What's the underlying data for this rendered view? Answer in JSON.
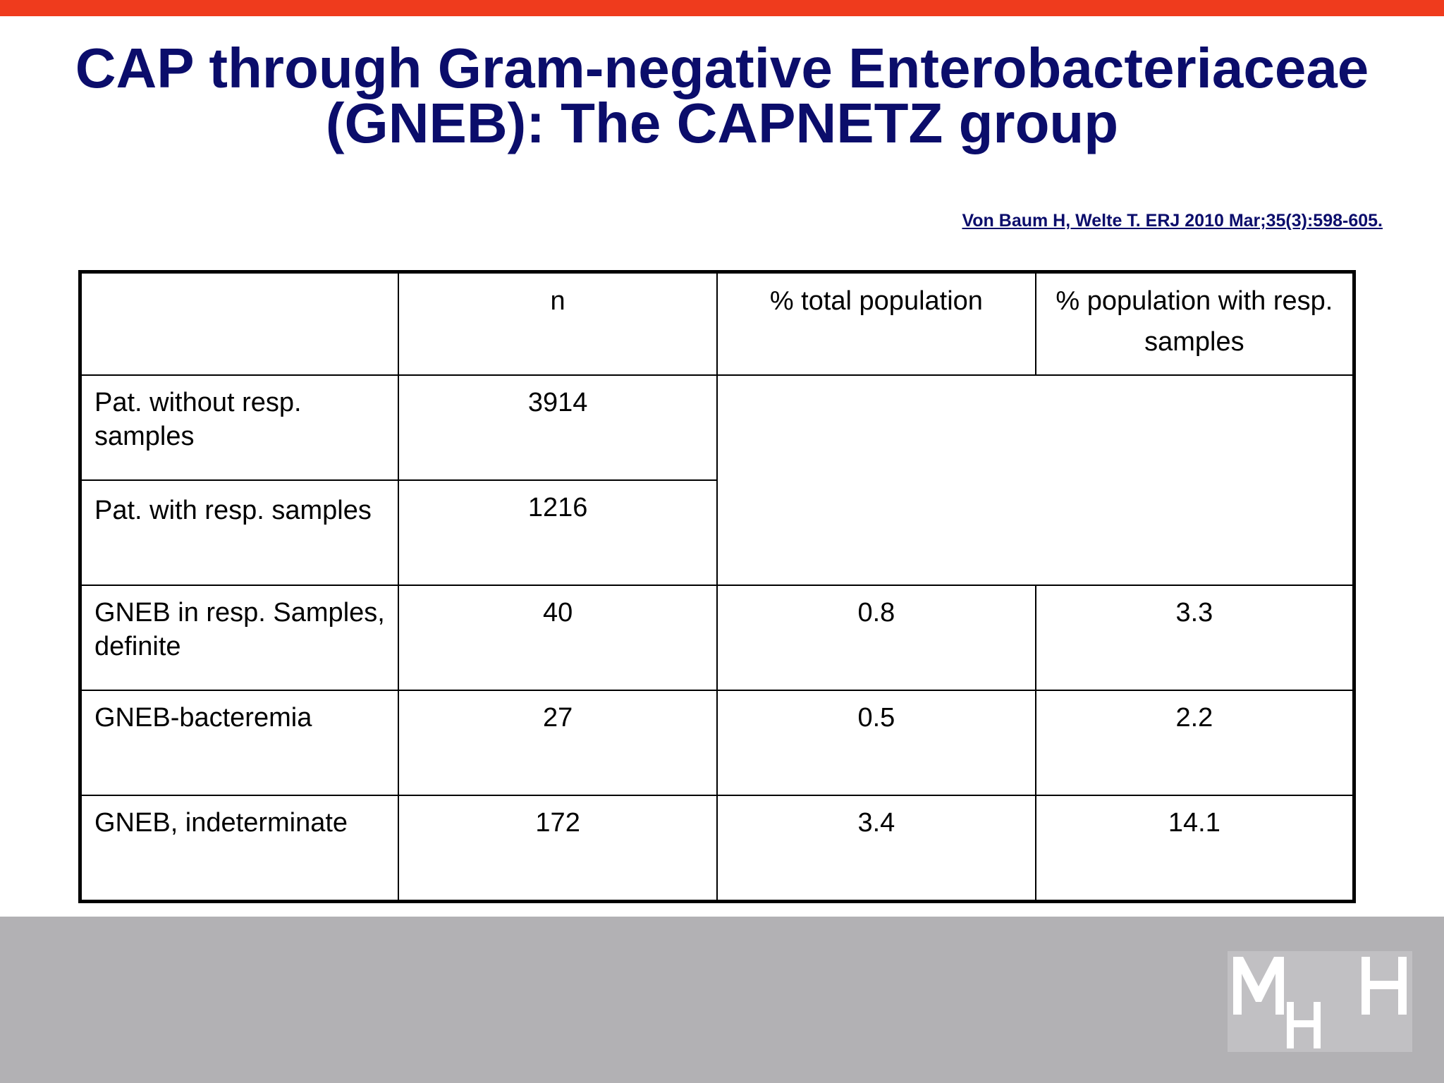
{
  "title": {
    "line1": "CAP through Gram-negative Enterobacteriaceae",
    "line2": "(GNEB): The CAPNETZ group"
  },
  "citation": "Von Baum H, Welte T. ERJ 2010 Mar;35(3):598-605. ",
  "table": {
    "headers": [
      "",
      "n",
      "% total population",
      "% population with resp. samples"
    ],
    "rows": [
      {
        "label": "Pat. without resp. samples",
        "n": "3914",
        "pct_total": "",
        "pct_resp": ""
      },
      {
        "label": "Pat. with resp. samples",
        "n": "1216",
        "pct_total": "",
        "pct_resp": ""
      },
      {
        "label": "GNEB in resp. Samples, definite",
        "n": "40",
        "pct_total": "0.8",
        "pct_resp": "3.3"
      },
      {
        "label": "GNEB-bacteremia",
        "n": "27",
        "pct_total": "0.5",
        "pct_resp": "2.2"
      },
      {
        "label": "GNEB, indeterminate",
        "n": "172",
        "pct_total": "3.4",
        "pct_resp": "14.1"
      }
    ]
  },
  "colors": {
    "top_bar": "#ef3b1d",
    "title": "#0b0d6b",
    "footer": "#b2b1b4"
  },
  "logo": {
    "icon": "mhh-logo",
    "text": "MHH"
  }
}
